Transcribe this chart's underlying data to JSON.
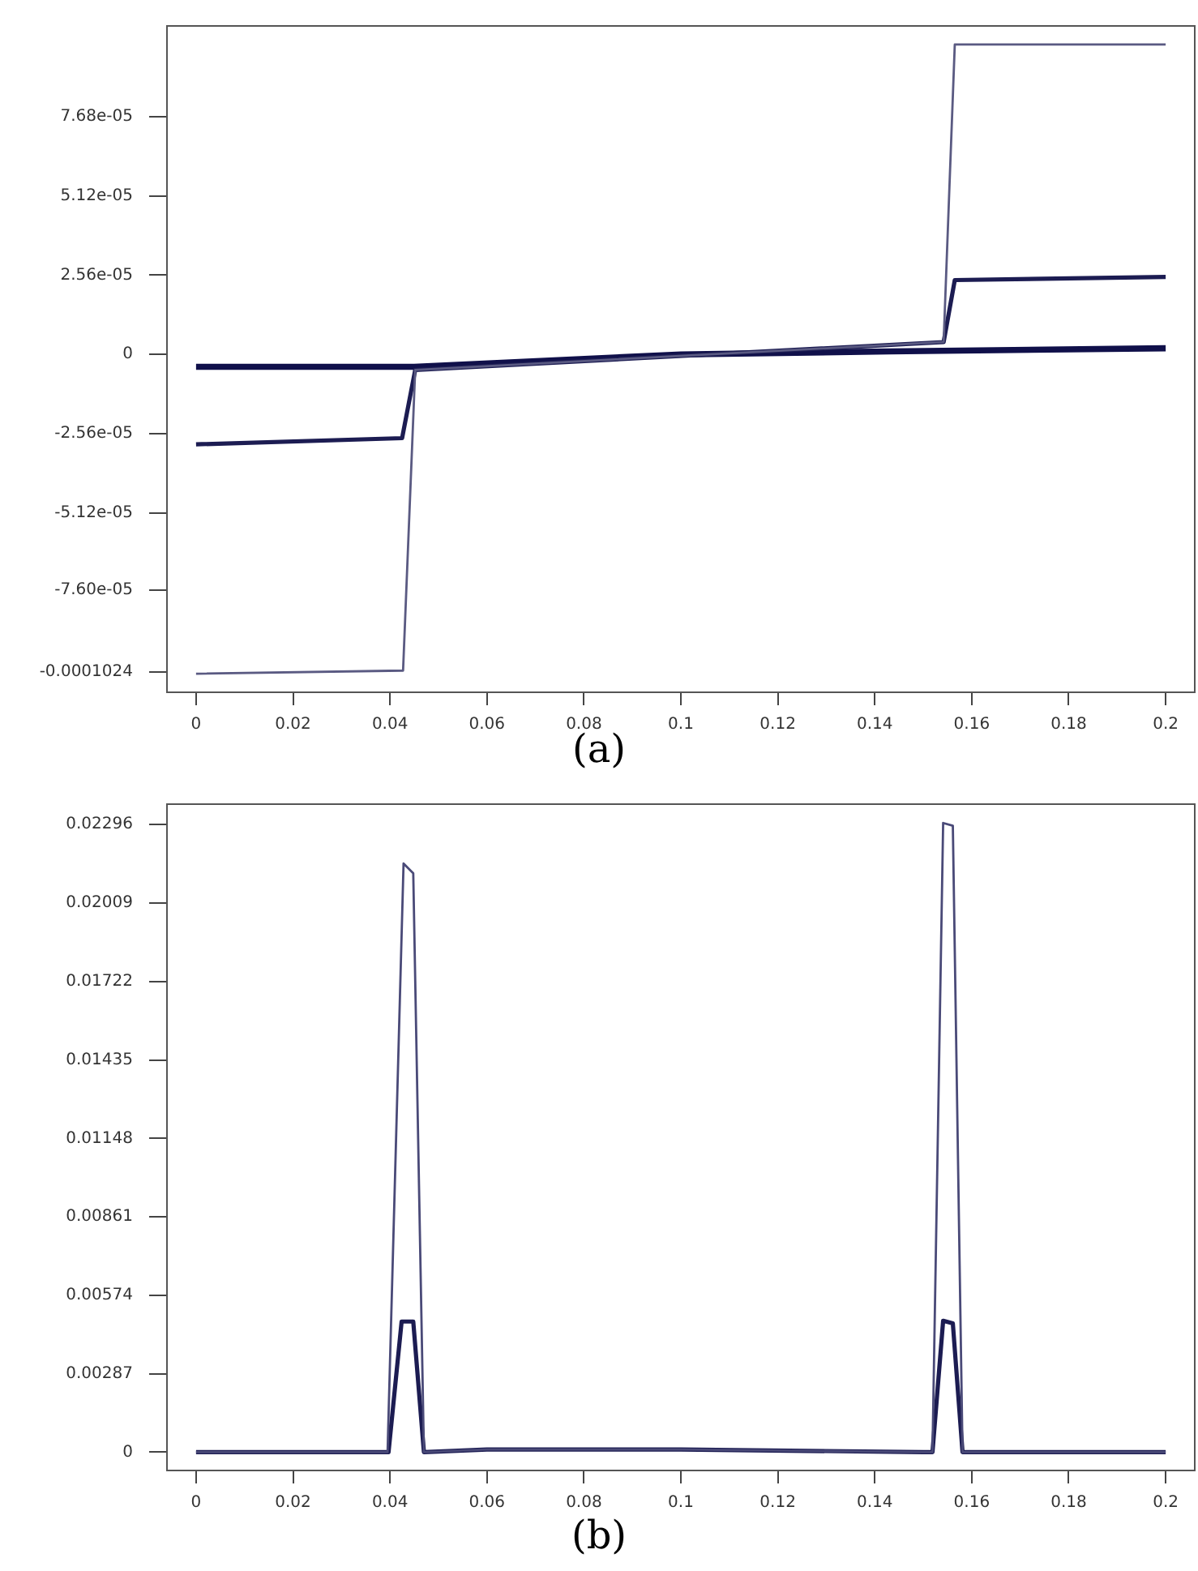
{
  "chart_data": [
    {
      "type": "line",
      "annotations": [
        "(a)"
      ],
      "xlim": [
        -0.006,
        0.206
      ],
      "ylim": [
        -0.000109,
        0.000106
      ],
      "xticks": [
        0,
        0.02,
        0.04,
        0.06,
        0.08,
        0.1,
        0.12,
        0.14,
        0.16,
        0.18,
        {
          "value": 0.2,
          "label": "0.2"
        }
      ],
      "yticks": [
        {
          "value": -0.0001024,
          "label": "-0.0001024"
        },
        {
          "value": -7.6e-05,
          "label": "-7.60e-05"
        },
        {
          "value": -5.12e-05,
          "label": "-5.12e-05"
        },
        {
          "value": -2.56e-05,
          "label": "-2.56e-05"
        },
        0,
        {
          "value": 2.56e-05,
          "label": "2.56e-05"
        },
        {
          "value": 5.12e-05,
          "label": "5.12e-05"
        },
        {
          "value": 7.68e-05,
          "label": "7.68e-05"
        }
      ],
      "grid": false,
      "legend": false,
      "marker": "none",
      "line_style": "solid",
      "series": [
        {
          "color": "#5a5a82",
          "x": [
            0,
            0.0427,
            0.0452,
            0.1542,
            0.1565,
            0.2
          ],
          "values": [
            -0.000103,
            -0.000102,
            -5e-06,
            4e-06,
            0.0001,
            0.0001
          ]
        },
        {
          "color": "#1c1c52",
          "x": [
            0,
            0.0425,
            0.0452,
            0.1542,
            0.1565,
            0.2
          ],
          "values": [
            -2.9e-05,
            -2.7e-05,
            -5e-06,
            4e-06,
            2.4e-05,
            2.5e-05
          ]
        },
        {
          "color": "#10104a",
          "x": [
            0,
            0.045,
            0.1,
            0.143,
            0.2
          ],
          "values": [
            -4e-06,
            -4e-06,
            0,
            1e-06,
            2e-06
          ]
        }
      ]
    },
    {
      "type": "line",
      "annotations": [
        "(b)"
      ],
      "xlim": [
        -0.006,
        0.206
      ],
      "ylim": [
        -0.00067,
        0.02371
      ],
      "xticks": [
        0,
        0.02,
        0.04,
        0.06,
        0.08,
        0.1,
        0.12,
        0.14,
        0.16,
        0.18,
        {
          "value": 0.2,
          "label": "0.2"
        }
      ],
      "yticks": [
        0,
        0.00287,
        0.00574,
        0.00861,
        0.01148,
        0.01435,
        0.01722,
        0.02009,
        0.02296
      ],
      "grid": false,
      "legend": false,
      "marker": "none",
      "line_style": "solid",
      "series": [
        {
          "color": "#4a4a78",
          "x": [
            0,
            0.0395,
            0.0428,
            0.0448,
            0.047,
            0.06,
            0.1,
            0.15,
            0.1519,
            0.1541,
            0.1561,
            0.1581,
            0.2
          ],
          "values": [
            0,
            0,
            0.02154,
            0.02118,
            0,
            0.0001,
            0.0001,
            0,
            0,
            0.02302,
            0.02292,
            0,
            0
          ]
        },
        {
          "color": "#1c1c52",
          "x": [
            0,
            0.0397,
            0.0424,
            0.0448,
            0.047,
            0.06,
            0.1,
            0.15,
            0.1519,
            0.1541,
            0.1561,
            0.1581,
            0.2
          ],
          "values": [
            0,
            0,
            0.00478,
            0.00478,
            0,
            0.0001,
            0.0001,
            0,
            0,
            0.00481,
            0.00471,
            0,
            0
          ]
        }
      ]
    }
  ]
}
